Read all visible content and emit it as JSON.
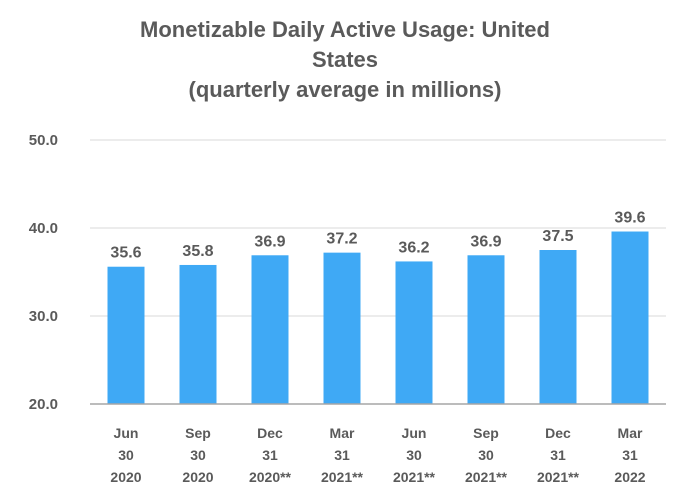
{
  "chart_data": {
    "type": "bar",
    "title_lines": [
      "Monetizable Daily Active Usage: United",
      "States",
      "(quarterly average in millions)"
    ],
    "categories": [
      [
        "Jun",
        "30",
        "2020"
      ],
      [
        "Sep",
        "30",
        "2020"
      ],
      [
        "Dec",
        "31",
        "2020**"
      ],
      [
        "Mar",
        "31",
        "2021**"
      ],
      [
        "Jun",
        "30",
        "2021**"
      ],
      [
        "Sep",
        "30",
        "2021**"
      ],
      [
        "Dec",
        "31",
        "2021**"
      ],
      [
        "Mar",
        "31",
        "2022"
      ]
    ],
    "values": [
      35.6,
      35.8,
      36.9,
      37.2,
      36.2,
      36.9,
      37.5,
      39.6
    ],
    "value_labels": [
      "35.6",
      "35.8",
      "36.9",
      "37.2",
      "36.2",
      "36.9",
      "37.5",
      "39.6"
    ],
    "ylim": [
      20,
      50
    ],
    "yticks": [
      20,
      30,
      40,
      50
    ],
    "ytick_labels": [
      "20.0",
      "30.0",
      "40.0",
      "50.0"
    ],
    "xlabel": "",
    "ylabel": "",
    "grid": true,
    "legend": "none",
    "colors": {
      "bar": "#3fa9f5",
      "text": "#5a5a5a",
      "grid": "#d9d9d9",
      "baseline": "#a6a6a6"
    }
  }
}
